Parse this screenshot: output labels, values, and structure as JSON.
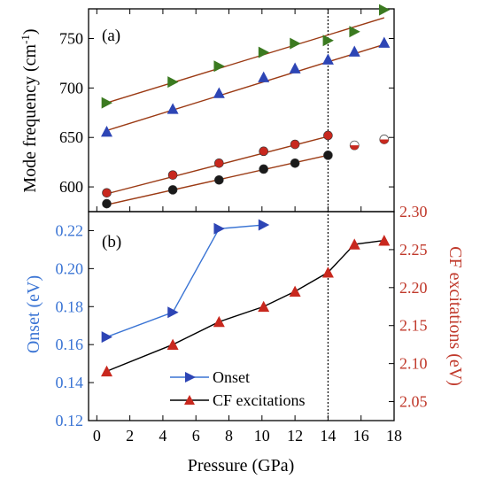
{
  "figure": {
    "xlabel": "Pressure (GPa)",
    "shared_x_ticks": [
      "0",
      "2",
      "4",
      "6",
      "8",
      "10",
      "12",
      "14",
      "16",
      "18"
    ],
    "vline_x": 14
  },
  "chart_data": [
    {
      "type": "scatter",
      "panel": "(a)",
      "ylabel_main": "Mode frequency (cm",
      "ylabel_sup": "-1",
      "ylabel_end": ")",
      "xlim": [
        -0.5,
        18
      ],
      "ylim": [
        575,
        780
      ],
      "x_ticks": [
        0,
        2,
        4,
        6,
        8,
        10,
        12,
        14,
        16,
        18
      ],
      "y_ticks": [
        600,
        650,
        700,
        750
      ],
      "series": [
        {
          "marker": "triangle-right",
          "color": "#3b7a20",
          "x": [
            0.6,
            4.6,
            7.4,
            10.1,
            12.0,
            14.0,
            15.6,
            17.4
          ],
          "y": [
            685,
            706,
            722,
            736,
            745,
            748,
            757,
            779
          ]
        },
        {
          "marker": "triangle-up",
          "color": "#2d45b5",
          "x": [
            0.6,
            4.6,
            7.4,
            10.1,
            12.0,
            14.0,
            15.6,
            17.4
          ],
          "y": [
            656,
            679,
            695,
            711,
            720,
            729,
            737,
            746
          ]
        },
        {
          "marker": "circle",
          "color": "#c8281e",
          "x": [
            0.6,
            4.6,
            7.4,
            10.1,
            12.0,
            14.0
          ],
          "y": [
            594,
            612,
            624,
            636,
            643,
            652
          ]
        },
        {
          "marker": "circle",
          "color": "#1a1a1a",
          "x": [
            0.6,
            4.6,
            7.4,
            10.1,
            12.0,
            14.0
          ],
          "y": [
            583,
            597,
            607,
            618,
            624,
            632
          ]
        },
        {
          "marker": "half-circle",
          "color": "#c8281e",
          "x": [
            15.6,
            17.4
          ],
          "y": [
            642,
            648
          ]
        }
      ],
      "fit_lines": [
        {
          "color": "#9b3a14",
          "x": [
            0.6,
            17.4
          ],
          "y": [
            685,
            771
          ]
        },
        {
          "color": "#9b3a14",
          "x": [
            0.6,
            17.4
          ],
          "y": [
            657,
            744
          ]
        },
        {
          "color": "#9b3a14",
          "x": [
            0.6,
            14.0
          ],
          "y": [
            593,
            651
          ]
        },
        {
          "color": "#9b3a14",
          "x": [
            0.6,
            14.0
          ],
          "y": [
            582,
            632
          ]
        }
      ]
    },
    {
      "type": "line",
      "panel": "(b)",
      "ylabel_left": "Onset (eV)",
      "ylabel_right": "CF excitations (eV)",
      "xlim": [
        -0.5,
        18
      ],
      "ylim_left": [
        0.12,
        0.23
      ],
      "ylim_right": [
        2.025,
        2.3
      ],
      "y_ticks_left": [
        "0.12",
        "0.14",
        "0.16",
        "0.18",
        "0.20",
        "0.22"
      ],
      "y_ticks_right": [
        "2.05",
        "2.10",
        "2.15",
        "2.20",
        "2.25",
        "2.30"
      ],
      "series": [
        {
          "name": "Onset",
          "axis": "left",
          "color": "#3a74d4",
          "marker": "triangle-right",
          "x": [
            0.6,
            4.6,
            7.4,
            10.1
          ],
          "y": [
            0.164,
            0.177,
            0.221,
            0.223
          ]
        },
        {
          "name": "CF excitations",
          "axis": "right",
          "color": "#000000",
          "marker": "triangle-up",
          "marker_color": "#c8281e",
          "x": [
            0.6,
            4.6,
            7.4,
            10.1,
            12.0,
            14.0,
            15.6,
            17.4
          ],
          "y": [
            2.09,
            2.125,
            2.155,
            2.175,
            2.195,
            2.22,
            2.257,
            2.262
          ]
        }
      ],
      "legend": {
        "position": "lower-center",
        "entries": [
          "Onset",
          "CF excitations"
        ]
      }
    }
  ],
  "colors": {
    "onset_axis": "#3a74d4",
    "cf_axis": "#c0392b",
    "fit": "#9b3a14"
  }
}
